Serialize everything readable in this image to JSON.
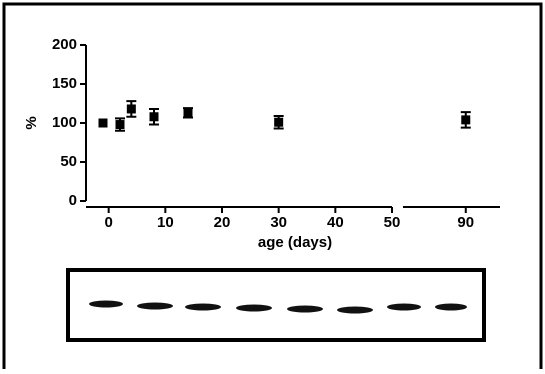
{
  "chart_data": {
    "type": "scatter",
    "ylabel": "%",
    "xlabel": "age (days)",
    "ylim": [
      0,
      200
    ],
    "yticks": [
      0,
      50,
      100,
      150,
      200
    ],
    "xlim_segments": [
      [
        -4,
        50
      ],
      [
        79,
        96
      ]
    ],
    "xticks": [
      0,
      10,
      20,
      30,
      40,
      50,
      90
    ],
    "series": [
      {
        "color": "#000000",
        "x": [
          -1,
          2,
          4,
          8,
          14,
          30,
          90
        ],
        "values": [
          100,
          98,
          118,
          108,
          113,
          101,
          104
        ],
        "errors": [
          0,
          8,
          10,
          10,
          6,
          8,
          10
        ]
      }
    ]
  }
}
